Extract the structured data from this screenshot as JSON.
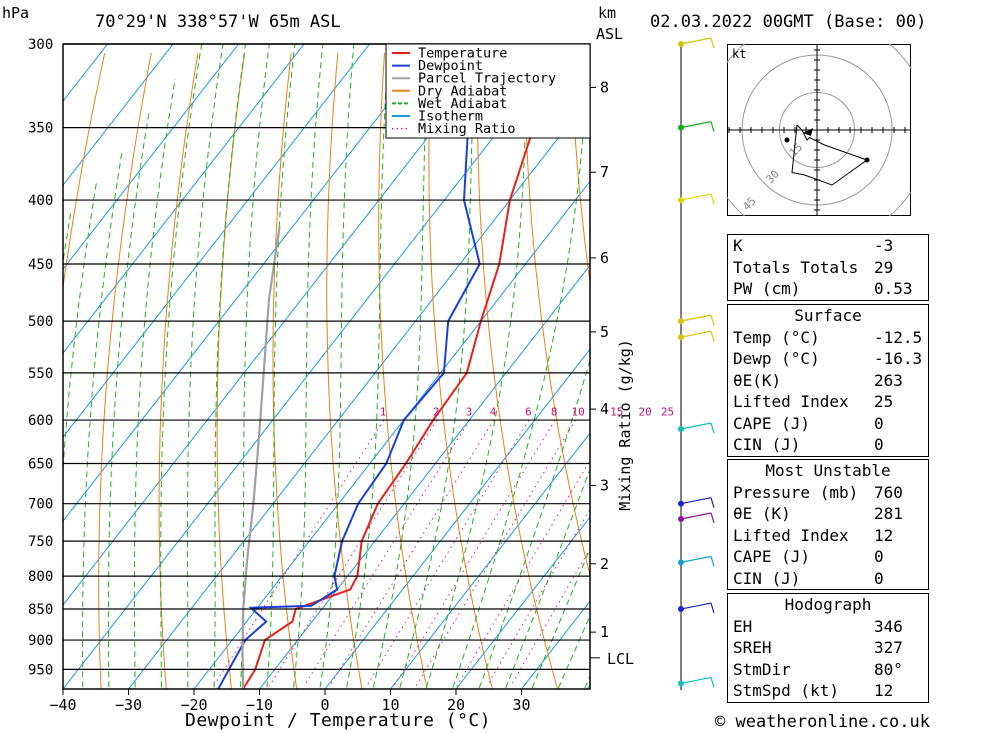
{
  "header": {
    "pressure_unit": "hPa",
    "location": "70°29'N  338°57'W  65m  ASL",
    "height_unit": "km",
    "height_unit2": "ASL",
    "datetime": "02.03.2022  00GMT  (Base: 00)"
  },
  "footer": {
    "copyright": "© weatheronline.co.uk"
  },
  "mixing_axis_label": "Mixing Ratio (g/kg)",
  "lcl_label": "LCL",
  "hodograph_unit": "kt",
  "hodograph_rings": [
    "15",
    "30",
    "45"
  ],
  "stats": {
    "k_label": "K",
    "k": "-3",
    "tt_label": "Totals Totals",
    "tt": "29",
    "pw_label": "PW (cm)",
    "pw": "0.53"
  },
  "surface": {
    "title": "Surface",
    "temp_label": "Temp (°C)",
    "temp": "-12.5",
    "dewp_label": "Dewp (°C)",
    "dewp": "-16.3",
    "theta_label": "θE(K)",
    "theta": "263",
    "li_label": "Lifted Index",
    "li": "25",
    "cape_label": "CAPE (J)",
    "cape": "0",
    "cin_label": "CIN (J)",
    "cin": "0"
  },
  "most_unstable": {
    "title": "Most Unstable",
    "pressure_label": "Pressure (mb)",
    "pressure": "760",
    "theta_label": "θE (K)",
    "theta": "281",
    "li_label": "Lifted Index",
    "li": "12",
    "cape_label": "CAPE (J)",
    "cape": "0",
    "cin_label": "CIN (J)",
    "cin": "0"
  },
  "hodograph_box": {
    "title": "Hodograph",
    "eh_label": "EH",
    "eh": "346",
    "sreh_label": "SREH",
    "sreh": "327",
    "stmdir_label": "StmDir",
    "stmdir": "80°",
    "stmspd_label": "StmSpd (kt)",
    "stmspd": "12"
  },
  "chart_data": {
    "type": "line",
    "subtype": "skew-T log-P diagram",
    "xlabel": "Dewpoint / Temperature (°C)",
    "ylabel": "hPa",
    "x_ticks": [
      -40,
      -30,
      -20,
      -10,
      0,
      10,
      20,
      30
    ],
    "pressure_ticks": [
      300,
      350,
      400,
      450,
      500,
      550,
      600,
      650,
      700,
      750,
      800,
      850,
      900,
      950
    ],
    "pressure_range": [
      300,
      985
    ],
    "km_ticks": [
      {
        "label": "8",
        "p": 325
      },
      {
        "label": "7",
        "p": 380
      },
      {
        "label": "6",
        "p": 445
      },
      {
        "label": "5",
        "p": 510
      },
      {
        "label": "4",
        "p": 588
      },
      {
        "label": "3",
        "p": 677
      },
      {
        "label": "2",
        "p": 782
      },
      {
        "label": "1",
        "p": 887
      }
    ],
    "lcl_pressure": 930,
    "mixing_ratio_labels": [
      "1",
      "2",
      "3",
      "4",
      "6",
      "8",
      "10",
      "15",
      "20",
      "25"
    ],
    "legend_position": "top-right of plot",
    "legend": [
      {
        "name": "Temperature",
        "color": "#e8201c",
        "style": "solid"
      },
      {
        "name": "Dewpoint",
        "color": "#1c3fd8",
        "style": "solid"
      },
      {
        "name": "Parcel Trajectory",
        "color": "#a0a0a0",
        "style": "solid"
      },
      {
        "name": "Dry Adiabat",
        "color": "#e8801c",
        "style": "solid"
      },
      {
        "name": "Wet Adiabat",
        "color": "#20b020",
        "style": "dashed"
      },
      {
        "name": "Isotherm",
        "color": "#1c9ae0",
        "style": "solid"
      },
      {
        "name": "Mixing Ratio",
        "color": "#d0208a",
        "style": "dotted"
      }
    ],
    "series": [
      {
        "name": "Temperature",
        "points": [
          [
            -12.5,
            985
          ],
          [
            -13,
            950
          ],
          [
            -15,
            900
          ],
          [
            -13,
            870
          ],
          [
            -14,
            850
          ],
          [
            -8,
            820
          ],
          [
            -8.5,
            800
          ],
          [
            -12,
            750
          ],
          [
            -14,
            700
          ],
          [
            -14.5,
            650
          ],
          [
            -15.5,
            600
          ],
          [
            -16,
            550
          ],
          [
            -20,
            500
          ],
          [
            -24,
            450
          ],
          [
            -30,
            400
          ],
          [
            -35,
            350
          ],
          [
            -38.5,
            320
          ],
          [
            -37,
            300
          ]
        ]
      },
      {
        "name": "Dewpoint",
        "points": [
          [
            -16.3,
            985
          ],
          [
            -17,
            950
          ],
          [
            -18,
            900
          ],
          [
            -17,
            870
          ],
          [
            -21,
            848
          ],
          [
            -12,
            845
          ],
          [
            -10,
            820
          ],
          [
            -12,
            800
          ],
          [
            -15,
            750
          ],
          [
            -17,
            700
          ],
          [
            -17.5,
            650
          ],
          [
            -20,
            600
          ],
          [
            -19.5,
            550
          ],
          [
            -25,
            500
          ],
          [
            -27,
            450
          ],
          [
            -37,
            400
          ],
          [
            -45,
            350
          ],
          [
            -45.5,
            330
          ],
          [
            -46,
            300
          ]
        ]
      },
      {
        "name": "Parcel Trajectory",
        "points": [
          [
            -12.5,
            985
          ],
          [
            -17,
            920
          ],
          [
            -22,
            850
          ],
          [
            -27,
            780
          ],
          [
            -33,
            700
          ],
          [
            -40,
            620
          ],
          [
            -47,
            550
          ],
          [
            -55,
            480
          ],
          [
            -62,
            420
          ]
        ]
      }
    ],
    "wind_profile": [
      {
        "p": 300,
        "color": "#c8c800"
      },
      {
        "p": 350,
        "color": "#10b010"
      },
      {
        "p": 400,
        "color": "#d8d800"
      },
      {
        "p": 500,
        "color": "#e0c000"
      },
      {
        "p": 515,
        "color": "#e0c000"
      },
      {
        "p": 610,
        "color": "#10c0b0"
      },
      {
        "p": 700,
        "color": "#2020d0"
      },
      {
        "p": 720,
        "color": "#9010a0"
      },
      {
        "p": 780,
        "color": "#10a0d0"
      },
      {
        "p": 850,
        "color": "#2020d0"
      },
      {
        "p": 975,
        "color": "#10c0c0"
      }
    ],
    "hodograph_trace": [
      [
        -8,
        -2
      ],
      [
        -6,
        0
      ],
      [
        -4,
        4
      ],
      [
        -3,
        3
      ],
      [
        3,
        6
      ],
      [
        20,
        12
      ],
      [
        6,
        22
      ],
      [
        -5,
        18
      ],
      [
        -10,
        17
      ],
      [
        -8,
        -2
      ]
    ],
    "hodograph_storm_motion": [
      -12,
      0
    ]
  }
}
